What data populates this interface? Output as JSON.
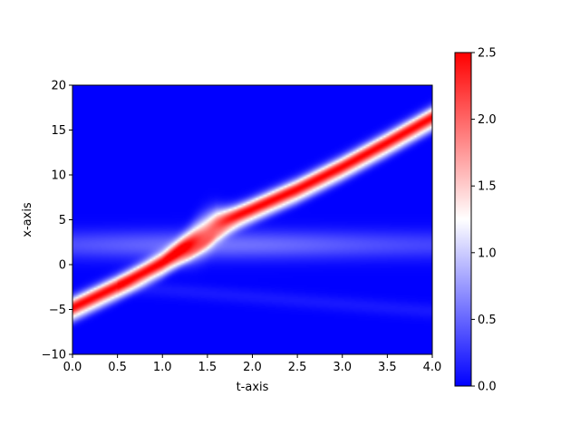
{
  "chart_data": {
    "type": "heatmap",
    "title": "",
    "xlabel": "t-axis",
    "ylabel": "x-axis",
    "xlim": [
      0.0,
      4.0
    ],
    "ylim": [
      -10,
      20
    ],
    "x_ticks": [
      "0.0",
      "0.5",
      "1.0",
      "1.5",
      "2.0",
      "2.5",
      "3.0",
      "3.5",
      "4.0"
    ],
    "y_ticks": [
      "−10",
      "−5",
      "0",
      "5",
      "10",
      "15",
      "20"
    ],
    "colorbar": {
      "range": [
        0.0,
        2.5
      ],
      "ticks": [
        "0.0",
        "0.5",
        "1.0",
        "1.5",
        "2.0",
        "2.5"
      ],
      "colormap": [
        "#0000ff",
        "#ffffff",
        "#ff0000"
      ]
    },
    "ridge": {
      "description_points_t": [
        0.0,
        0.5,
        1.0,
        1.3,
        1.6,
        2.0,
        2.5,
        3.0,
        3.5,
        4.0
      ],
      "description_points_x": [
        -4.8,
        -2.4,
        0.2,
        2.2,
        4.5,
        6.2,
        8.4,
        10.9,
        13.6,
        16.4
      ],
      "peak_value": 2.5,
      "peak_at_t": [
        1.3,
        1.6
      ],
      "peak_value_at_collision": 1.7
    },
    "background_band": {
      "x_center": 2.2,
      "value": 0.55
    },
    "grid": false,
    "legend": "none"
  }
}
